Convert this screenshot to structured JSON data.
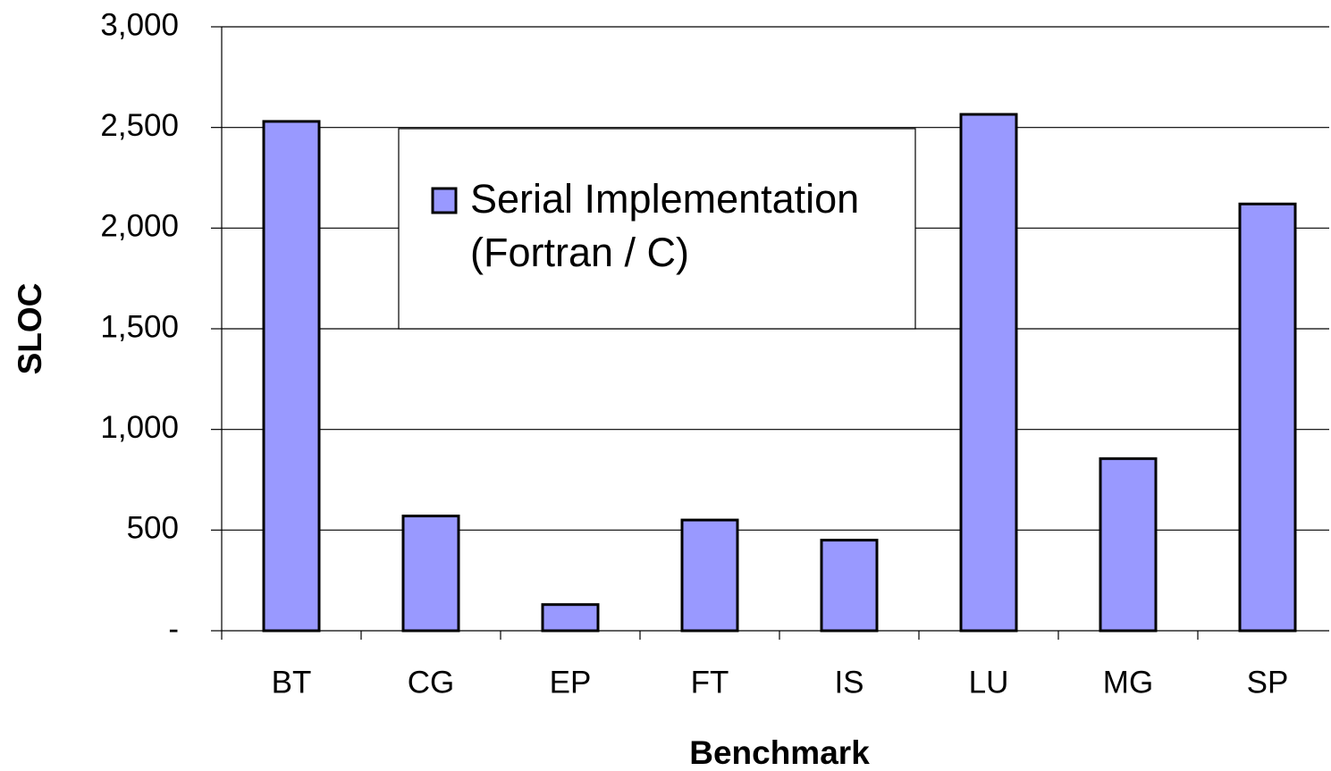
{
  "chart_data": {
    "type": "bar",
    "x_label": "Benchmark",
    "y_label": "SLOC",
    "categories": [
      "BT",
      "CG",
      "EP",
      "FT",
      "IS",
      "LU",
      "MG",
      "SP"
    ],
    "series": [
      {
        "name": "Serial Implementation (Fortran / C)",
        "color": "#9999ff",
        "values": [
          2530,
          570,
          130,
          550,
          450,
          2565,
          855,
          2120
        ]
      }
    ],
    "ylim": [
      0,
      3000
    ],
    "yticks": [
      {
        "value": 0,
        "label": "-"
      },
      500,
      {
        "value": 1000,
        "label": "1,000"
      },
      {
        "value": 1500,
        "label": "1,500"
      },
      {
        "value": 2000,
        "label": "2,000"
      },
      {
        "value": 2500,
        "label": "2,500"
      },
      {
        "value": 3000,
        "label": "3,000"
      }
    ],
    "grid": true,
    "legend": "top"
  }
}
